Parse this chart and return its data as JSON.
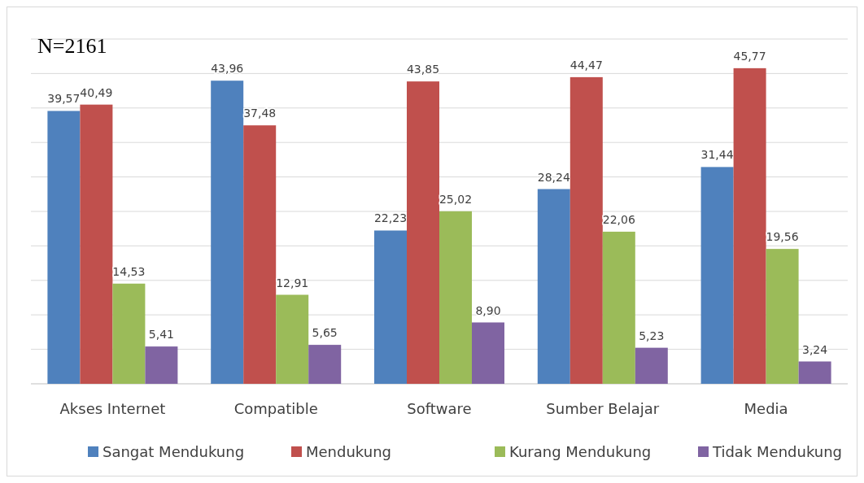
{
  "chart_data": {
    "type": "bar",
    "annotations": [
      "N=2161"
    ],
    "categories": [
      "Akses Internet",
      "Compatible",
      "Software",
      "Sumber Belajar",
      "Media"
    ],
    "series": [
      {
        "name": "Sangat Mendukung",
        "color": "#4f81bd",
        "values": [
          39.57,
          43.96,
          22.23,
          28.24,
          31.44
        ],
        "value_labels": [
          "39,57",
          "43,96",
          "22,23",
          "28,24",
          "31,44"
        ]
      },
      {
        "name": "Mendukung",
        "color": "#c0504d",
        "values": [
          40.49,
          37.48,
          43.85,
          44.47,
          45.77
        ],
        "value_labels": [
          "40,49",
          "37,48",
          "43,85",
          "44,47",
          "45,77"
        ]
      },
      {
        "name": "Kurang Mendukung",
        "color": "#9bbb59",
        "values": [
          14.53,
          12.91,
          25.02,
          22.06,
          19.56
        ],
        "value_labels": [
          "14,53",
          "12,91",
          "25,02",
          "22,06",
          "19,56"
        ]
      },
      {
        "name": "Tidak Mendukung",
        "color": "#8064a2",
        "values": [
          5.41,
          5.65,
          8.9,
          5.23,
          3.24
        ],
        "value_labels": [
          "5,41",
          "5,65",
          "8,90",
          "5,23",
          "3,24"
        ]
      }
    ],
    "ylim": [
      0,
      50
    ],
    "yticks": [
      {
        "value": 0,
        "label": null
      },
      {
        "value": 5,
        "label": null
      },
      {
        "value": 10,
        "label": null
      },
      {
        "value": 15,
        "label": null
      },
      {
        "value": 20,
        "label": null
      },
      {
        "value": 25,
        "label": null
      },
      {
        "value": 30,
        "label": null
      },
      {
        "value": 35,
        "label": null
      },
      {
        "value": 40,
        "label": null
      },
      {
        "value": 45,
        "label": null
      },
      {
        "value": 50,
        "label": null
      }
    ],
    "tick_labels": "x",
    "grid": "y",
    "legend": "bottom"
  }
}
